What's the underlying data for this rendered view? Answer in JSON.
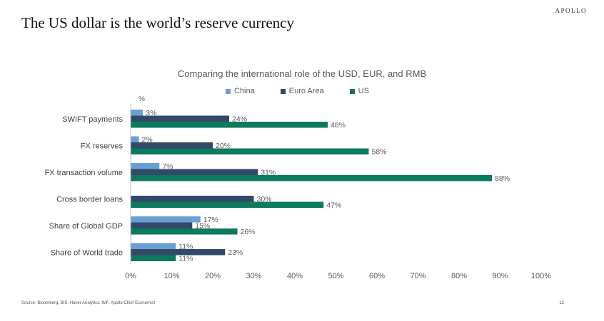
{
  "brand": "APOLLO",
  "page_title": "The US dollar is the world’s reserve currency",
  "footer": {
    "source": "Source: Bloomberg, BIS, Haver Analytics, IMF, Apollo Chief Economist",
    "page_number": "12"
  },
  "chart_data": {
    "type": "bar",
    "orientation": "horizontal",
    "title": "Comparing the international role of the USD, EUR, and RMB",
    "unit_label": "%",
    "categories": [
      "SWIFT payments",
      "FX reserves",
      "FX transaction volume",
      "Cross border loans",
      "Share of Global GDP",
      "Share of World trade"
    ],
    "series": [
      {
        "name": "China",
        "color": "#6a9fd4",
        "values": [
          3,
          2,
          7,
          null,
          17,
          11
        ],
        "labels": [
          "3%",
          "2%",
          "7%",
          "",
          "17%",
          "11%"
        ]
      },
      {
        "name": "Euro Area",
        "color": "#324a68",
        "values": [
          24,
          20,
          31,
          30,
          15,
          23
        ],
        "labels": [
          "24%",
          "20%",
          "31%",
          "30%",
          "15%",
          "23%"
        ]
      },
      {
        "name": "US",
        "color": "#0b7a5d",
        "values": [
          48,
          58,
          88,
          47,
          26,
          11
        ],
        "labels": [
          "48%",
          "58%",
          "88%",
          "47%",
          "26%",
          "11%"
        ]
      }
    ],
    "xlim": [
      0,
      100
    ],
    "xticks": [
      "0%",
      "10%",
      "20%",
      "30%",
      "40%",
      "50%",
      "60%",
      "70%",
      "80%",
      "90%",
      "100%"
    ],
    "legend_position": "top",
    "grid": false
  }
}
